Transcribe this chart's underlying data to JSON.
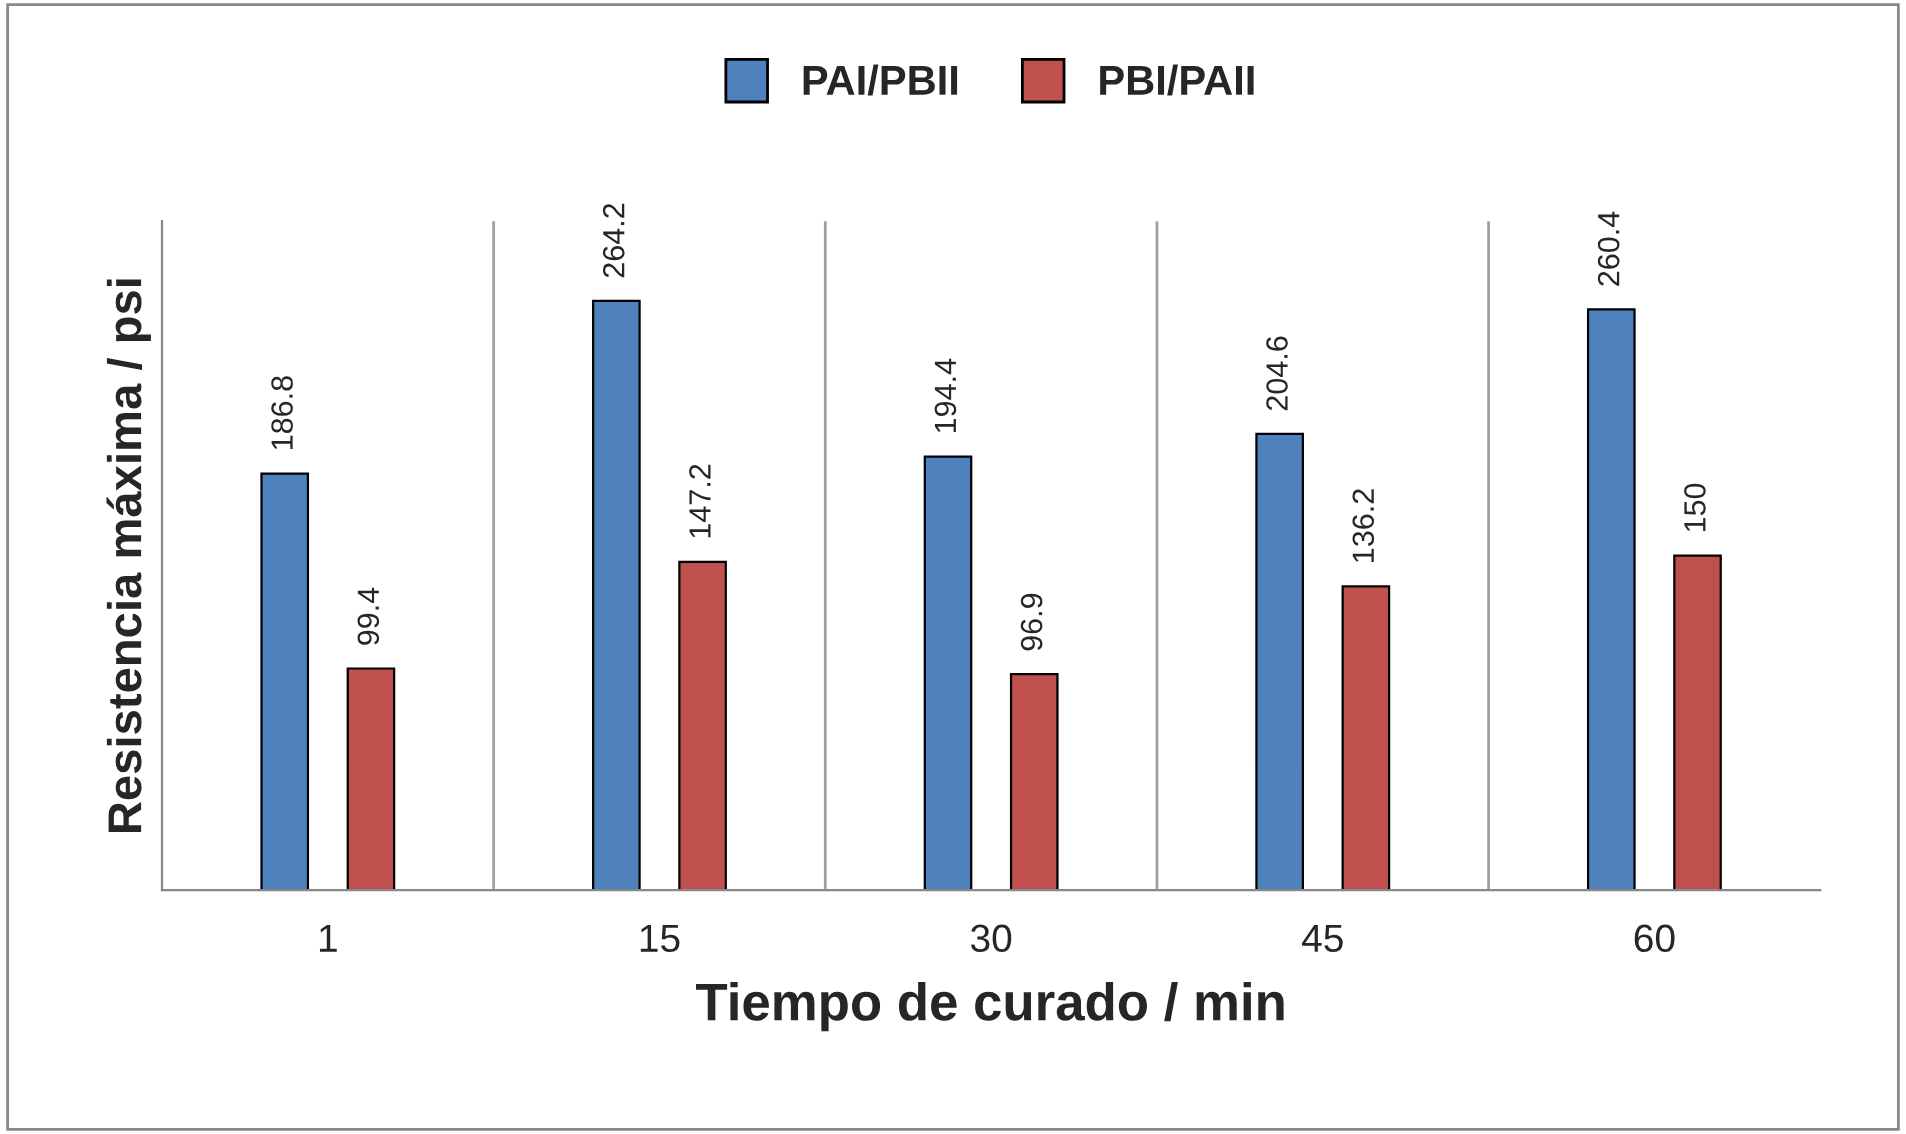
{
  "chart_data": {
    "type": "bar",
    "xlabel": "Tiempo de curado / min",
    "ylabel": "Resistencia máxima / psi",
    "categories": [
      "1",
      "15",
      "30",
      "45",
      "60"
    ],
    "series": [
      {
        "name": "PAI/PBII",
        "color": "#4f81bd",
        "values": [
          186.8,
          264.2,
          194.4,
          204.6,
          260.4
        ]
      },
      {
        "name": "PBI/PAII",
        "color": "#c0504d",
        "values": [
          99.4,
          147.2,
          96.9,
          136.2,
          150
        ]
      }
    ],
    "ylim": [
      0,
      300
    ],
    "tick_labels": "x",
    "data_labels": true,
    "grid": "x",
    "legend": "top"
  }
}
